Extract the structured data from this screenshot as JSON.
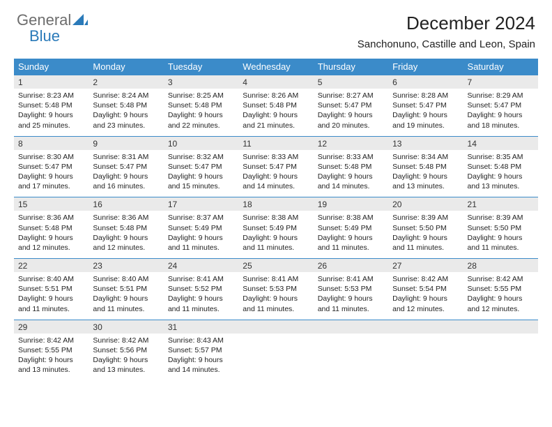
{
  "logo": {
    "text1": "General",
    "text2": "Blue"
  },
  "title": "December 2024",
  "location": "Sanchonuno, Castille and Leon, Spain",
  "colors": {
    "header_bg": "#3b8bc9",
    "header_text": "#ffffff",
    "daynum_bg": "#eaeaea",
    "border": "#3b8bc9",
    "logo_gray": "#6d6d6d",
    "logo_blue": "#2a7ab9"
  },
  "day_headers": [
    "Sunday",
    "Monday",
    "Tuesday",
    "Wednesday",
    "Thursday",
    "Friday",
    "Saturday"
  ],
  "weeks": [
    {
      "days": [
        {
          "num": "1",
          "sunrise": "Sunrise: 8:23 AM",
          "sunset": "Sunset: 5:48 PM",
          "daylight": "Daylight: 9 hours and 25 minutes."
        },
        {
          "num": "2",
          "sunrise": "Sunrise: 8:24 AM",
          "sunset": "Sunset: 5:48 PM",
          "daylight": "Daylight: 9 hours and 23 minutes."
        },
        {
          "num": "3",
          "sunrise": "Sunrise: 8:25 AM",
          "sunset": "Sunset: 5:48 PM",
          "daylight": "Daylight: 9 hours and 22 minutes."
        },
        {
          "num": "4",
          "sunrise": "Sunrise: 8:26 AM",
          "sunset": "Sunset: 5:48 PM",
          "daylight": "Daylight: 9 hours and 21 minutes."
        },
        {
          "num": "5",
          "sunrise": "Sunrise: 8:27 AM",
          "sunset": "Sunset: 5:47 PM",
          "daylight": "Daylight: 9 hours and 20 minutes."
        },
        {
          "num": "6",
          "sunrise": "Sunrise: 8:28 AM",
          "sunset": "Sunset: 5:47 PM",
          "daylight": "Daylight: 9 hours and 19 minutes."
        },
        {
          "num": "7",
          "sunrise": "Sunrise: 8:29 AM",
          "sunset": "Sunset: 5:47 PM",
          "daylight": "Daylight: 9 hours and 18 minutes."
        }
      ]
    },
    {
      "days": [
        {
          "num": "8",
          "sunrise": "Sunrise: 8:30 AM",
          "sunset": "Sunset: 5:47 PM",
          "daylight": "Daylight: 9 hours and 17 minutes."
        },
        {
          "num": "9",
          "sunrise": "Sunrise: 8:31 AM",
          "sunset": "Sunset: 5:47 PM",
          "daylight": "Daylight: 9 hours and 16 minutes."
        },
        {
          "num": "10",
          "sunrise": "Sunrise: 8:32 AM",
          "sunset": "Sunset: 5:47 PM",
          "daylight": "Daylight: 9 hours and 15 minutes."
        },
        {
          "num": "11",
          "sunrise": "Sunrise: 8:33 AM",
          "sunset": "Sunset: 5:47 PM",
          "daylight": "Daylight: 9 hours and 14 minutes."
        },
        {
          "num": "12",
          "sunrise": "Sunrise: 8:33 AM",
          "sunset": "Sunset: 5:48 PM",
          "daylight": "Daylight: 9 hours and 14 minutes."
        },
        {
          "num": "13",
          "sunrise": "Sunrise: 8:34 AM",
          "sunset": "Sunset: 5:48 PM",
          "daylight": "Daylight: 9 hours and 13 minutes."
        },
        {
          "num": "14",
          "sunrise": "Sunrise: 8:35 AM",
          "sunset": "Sunset: 5:48 PM",
          "daylight": "Daylight: 9 hours and 13 minutes."
        }
      ]
    },
    {
      "days": [
        {
          "num": "15",
          "sunrise": "Sunrise: 8:36 AM",
          "sunset": "Sunset: 5:48 PM",
          "daylight": "Daylight: 9 hours and 12 minutes."
        },
        {
          "num": "16",
          "sunrise": "Sunrise: 8:36 AM",
          "sunset": "Sunset: 5:48 PM",
          "daylight": "Daylight: 9 hours and 12 minutes."
        },
        {
          "num": "17",
          "sunrise": "Sunrise: 8:37 AM",
          "sunset": "Sunset: 5:49 PM",
          "daylight": "Daylight: 9 hours and 11 minutes."
        },
        {
          "num": "18",
          "sunrise": "Sunrise: 8:38 AM",
          "sunset": "Sunset: 5:49 PM",
          "daylight": "Daylight: 9 hours and 11 minutes."
        },
        {
          "num": "19",
          "sunrise": "Sunrise: 8:38 AM",
          "sunset": "Sunset: 5:49 PM",
          "daylight": "Daylight: 9 hours and 11 minutes."
        },
        {
          "num": "20",
          "sunrise": "Sunrise: 8:39 AM",
          "sunset": "Sunset: 5:50 PM",
          "daylight": "Daylight: 9 hours and 11 minutes."
        },
        {
          "num": "21",
          "sunrise": "Sunrise: 8:39 AM",
          "sunset": "Sunset: 5:50 PM",
          "daylight": "Daylight: 9 hours and 11 minutes."
        }
      ]
    },
    {
      "days": [
        {
          "num": "22",
          "sunrise": "Sunrise: 8:40 AM",
          "sunset": "Sunset: 5:51 PM",
          "daylight": "Daylight: 9 hours and 11 minutes."
        },
        {
          "num": "23",
          "sunrise": "Sunrise: 8:40 AM",
          "sunset": "Sunset: 5:51 PM",
          "daylight": "Daylight: 9 hours and 11 minutes."
        },
        {
          "num": "24",
          "sunrise": "Sunrise: 8:41 AM",
          "sunset": "Sunset: 5:52 PM",
          "daylight": "Daylight: 9 hours and 11 minutes."
        },
        {
          "num": "25",
          "sunrise": "Sunrise: 8:41 AM",
          "sunset": "Sunset: 5:53 PM",
          "daylight": "Daylight: 9 hours and 11 minutes."
        },
        {
          "num": "26",
          "sunrise": "Sunrise: 8:41 AM",
          "sunset": "Sunset: 5:53 PM",
          "daylight": "Daylight: 9 hours and 11 minutes."
        },
        {
          "num": "27",
          "sunrise": "Sunrise: 8:42 AM",
          "sunset": "Sunset: 5:54 PM",
          "daylight": "Daylight: 9 hours and 12 minutes."
        },
        {
          "num": "28",
          "sunrise": "Sunrise: 8:42 AM",
          "sunset": "Sunset: 5:55 PM",
          "daylight": "Daylight: 9 hours and 12 minutes."
        }
      ]
    },
    {
      "days": [
        {
          "num": "29",
          "sunrise": "Sunrise: 8:42 AM",
          "sunset": "Sunset: 5:55 PM",
          "daylight": "Daylight: 9 hours and 13 minutes."
        },
        {
          "num": "30",
          "sunrise": "Sunrise: 8:42 AM",
          "sunset": "Sunset: 5:56 PM",
          "daylight": "Daylight: 9 hours and 13 minutes."
        },
        {
          "num": "31",
          "sunrise": "Sunrise: 8:43 AM",
          "sunset": "Sunset: 5:57 PM",
          "daylight": "Daylight: 9 hours and 14 minutes."
        },
        {
          "empty": true
        },
        {
          "empty": true
        },
        {
          "empty": true
        },
        {
          "empty": true
        }
      ]
    }
  ]
}
